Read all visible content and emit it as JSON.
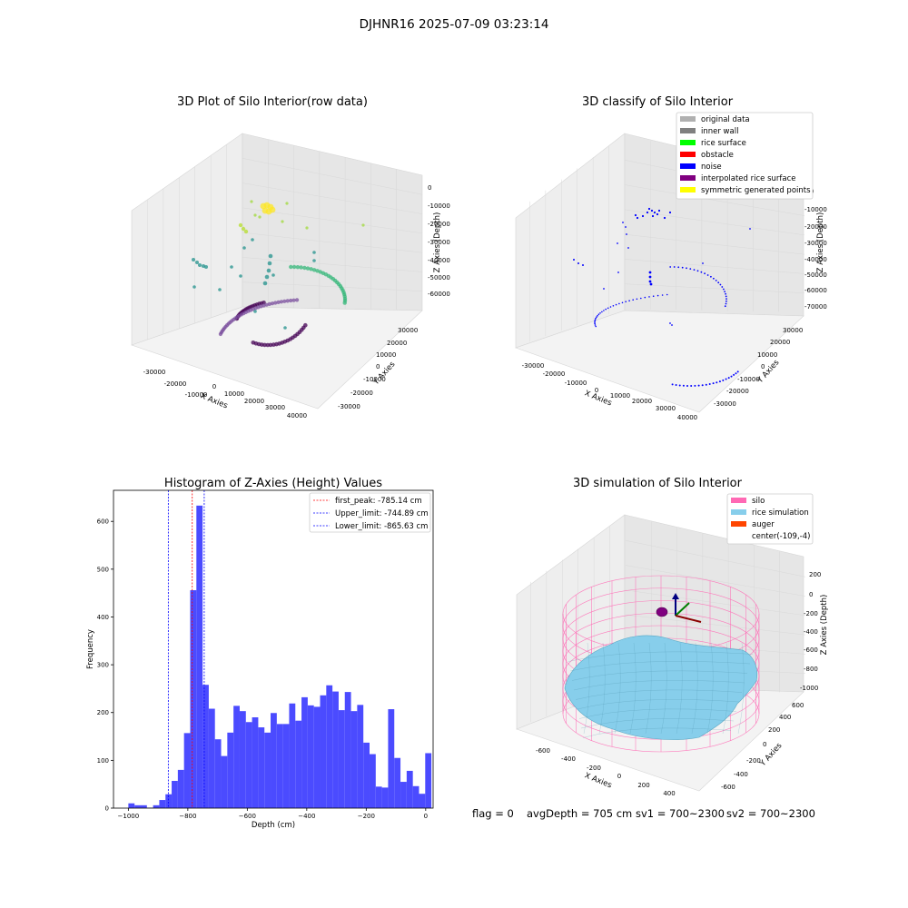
{
  "figure": {
    "suptitle": "DJHNR16 2025-07-09 03:23:14"
  },
  "chart_data": [
    {
      "type": "scatter3d",
      "title": "3D Plot of Silo Interior(row data)",
      "xlabel": "X Axies",
      "ylabel": "Y Axies",
      "zlabel": "Z Axies (Depth)",
      "x_ticks": [
        "-30000",
        "-20000",
        "-10000",
        "0",
        "10000",
        "20000",
        "30000",
        "40000"
      ],
      "y_ticks": [
        "-30000",
        "-20000",
        "-10000",
        "0",
        "10000",
        "20000",
        "30000"
      ],
      "z_ticks": [
        "0",
        "-10000",
        "-20000",
        "-30000",
        "-40000",
        "-50000",
        "-60000"
      ],
      "grid": true,
      "colormap": "viridis",
      "colors": {
        "low": "#440154",
        "midlow": "#31688e",
        "mid": "#21918c",
        "midhigh": "#35b779",
        "high": "#fde725"
      }
    },
    {
      "type": "scatter3d",
      "title": "3D classify of Silo Interior",
      "xlabel": "X Axies",
      "ylabel": "Y Axies",
      "zlabel": "Z Axies (Depth)",
      "x_ticks": [
        "-30000",
        "-20000",
        "-10000",
        "0",
        "10000",
        "20000",
        "30000",
        "40000"
      ],
      "y_ticks": [
        "-30000",
        "-20000",
        "-10000",
        "0",
        "10000",
        "20000",
        "30000"
      ],
      "z_ticks": [
        "0",
        "-10000",
        "-20000",
        "-30000",
        "-40000",
        "-50000",
        "-60000",
        "-70000"
      ],
      "grid": true,
      "legend_position": "top-right",
      "legend": [
        {
          "label": "original data",
          "color": "#b0b0b0"
        },
        {
          "label": "inner wall",
          "color": "#808080"
        },
        {
          "label": "rice surface",
          "color": "#00ff00"
        },
        {
          "label": "obstacle",
          "color": "#ff0000"
        },
        {
          "label": "noise",
          "color": "#0000ff"
        },
        {
          "label": "interpolated rice surface",
          "color": "#800080"
        },
        {
          "label": "symmetric generated points",
          "color": "#ffff00"
        }
      ]
    },
    {
      "type": "bar",
      "title": "Histogram of Z-Axies (Height) Values",
      "xlabel": "Depth (cm)",
      "ylabel": "Frequency",
      "xlim": [
        -1050,
        25
      ],
      "ylim": [
        0,
        665
      ],
      "x_ticks": [
        -1000,
        -800,
        -600,
        -400,
        -200,
        0
      ],
      "y_ticks": [
        0,
        100,
        200,
        300,
        400,
        500,
        600
      ],
      "bar_color": "#4b4bff",
      "bin_start": -1000,
      "bin_width": 20.8,
      "values": [
        10,
        6,
        6,
        1,
        6,
        17,
        29,
        57,
        80,
        157,
        456,
        633,
        258,
        208,
        144,
        109,
        158,
        214,
        203,
        180,
        190,
        169,
        158,
        199,
        176,
        176,
        219,
        183,
        232,
        215,
        212,
        236,
        257,
        244,
        205,
        243,
        203,
        216,
        137,
        113,
        45,
        43,
        207,
        105,
        55,
        78,
        46,
        30,
        115
      ],
      "legend_position": "top-right",
      "lines": [
        {
          "label": "first_peak: -785.14 cm",
          "x": -785.14,
          "color": "#ff0000"
        },
        {
          "label": "Upper_limit: -744.89 cm",
          "x": -744.89,
          "color": "#0000ff"
        },
        {
          "label": "Lower_limit: -865.63 cm",
          "x": -865.63,
          "color": "#0000ff"
        }
      ],
      "grid": false
    },
    {
      "type": "surface3d",
      "title": "3D simulation of Silo Interior",
      "xlabel": "X Axies",
      "ylabel": "Y Axies",
      "zlabel": "Z Axies (Depth)",
      "x_ticks": [
        "-600",
        "-400",
        "-200",
        "0",
        "200",
        "400"
      ],
      "y_ticks": [
        "-600",
        "-400",
        "-200",
        "0",
        "200",
        "400",
        "600"
      ],
      "z_ticks": [
        "200",
        "0",
        "-200",
        "-400",
        "-600",
        "-800",
        "-1000"
      ],
      "grid": true,
      "legend_position": "top-right",
      "legend": [
        {
          "label": "silo",
          "color": "#ff69b4"
        },
        {
          "label": "rice simulation",
          "color": "#87ceeb"
        },
        {
          "label": "auger",
          "color": "#ff4500"
        },
        {
          "label": "center(-109,-4)",
          "color": ""
        }
      ]
    }
  ],
  "status": {
    "flag": "flag = 0",
    "avg_depth": "avgDepth = 705 cm",
    "sv1": "sv1 = 700~2300",
    "sv2": "sv2 = 700~2300"
  }
}
